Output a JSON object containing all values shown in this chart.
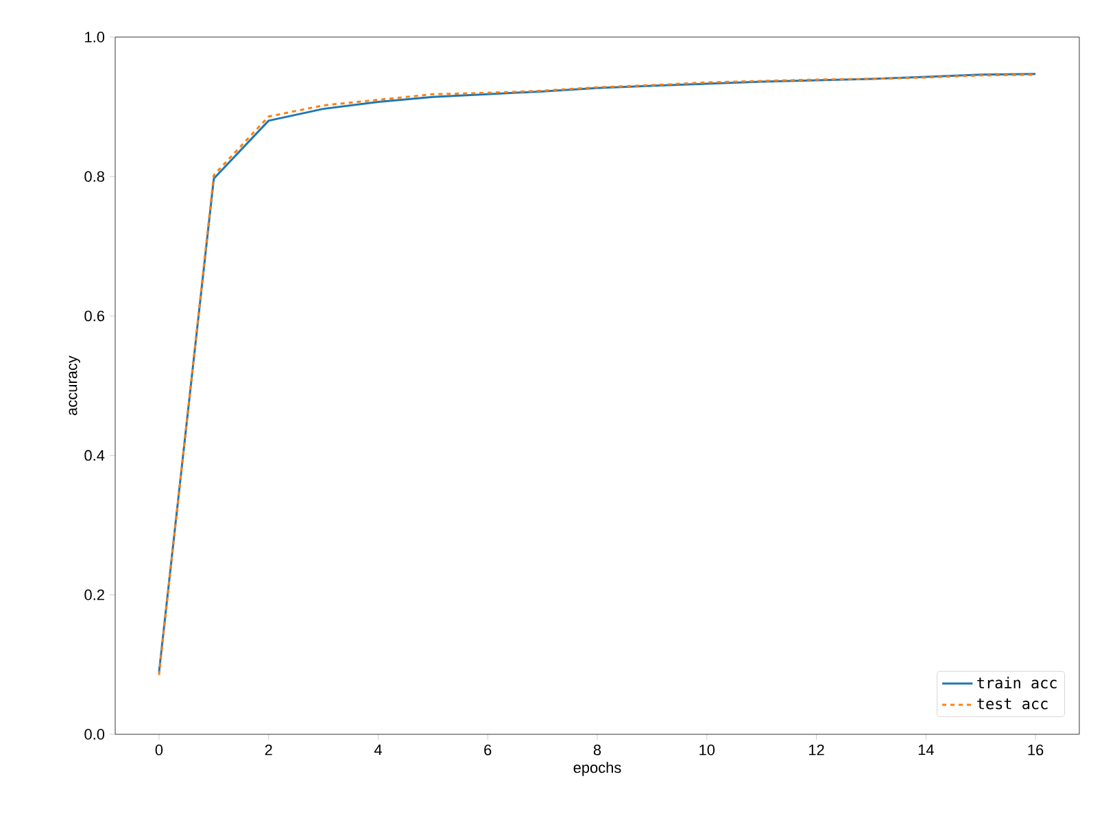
{
  "chart_data": {
    "type": "line",
    "xlabel": "epochs",
    "ylabel": "accuracy",
    "x": [
      0,
      1,
      2,
      3,
      4,
      5,
      6,
      7,
      8,
      9,
      10,
      11,
      12,
      13,
      14,
      15,
      16
    ],
    "series": [
      {
        "name": "train acc",
        "color": "#1f77b4",
        "line_style": "solid",
        "values": [
          0.089,
          0.797,
          0.88,
          0.897,
          0.907,
          0.914,
          0.918,
          0.922,
          0.927,
          0.93,
          0.933,
          0.936,
          0.938,
          0.94,
          0.943,
          0.946,
          0.947
        ]
      },
      {
        "name": "test acc",
        "color": "#ff7f0e",
        "line_style": "dashed",
        "values": [
          0.085,
          0.802,
          0.886,
          0.902,
          0.91,
          0.918,
          0.92,
          0.923,
          0.928,
          0.931,
          0.935,
          0.937,
          0.939,
          0.94,
          0.942,
          0.945,
          0.946
        ]
      }
    ],
    "xlim": [
      -0.8,
      16.8
    ],
    "ylim": [
      0.0,
      1.0
    ],
    "xticks": [
      0,
      2,
      4,
      6,
      8,
      10,
      12,
      14,
      16
    ],
    "yticks": [
      {
        "value": 0,
        "label": "0.0"
      },
      0.2,
      0.4,
      0.6,
      0.8,
      {
        "value": 1,
        "label": "1.0"
      }
    ],
    "legend": "bottom right",
    "grid": false,
    "marker": "none"
  }
}
